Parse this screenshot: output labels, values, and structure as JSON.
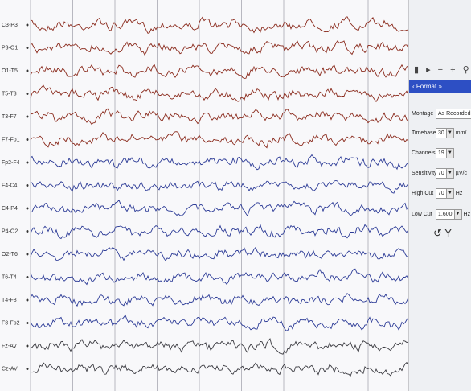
{
  "channels": [
    "C3-P3",
    "P3-O1",
    "O1-T5",
    "T5-T3",
    "T3-F7",
    "F7-Fp1",
    "Fp2-F4",
    "F4-C4",
    "C4-P4",
    "P4-O2",
    "O2-T6",
    "T6-T4",
    "T4-F8",
    "F8-Fp2",
    "Fz-AV",
    "Cz-AV"
  ],
  "panel": {
    "header": "Format",
    "settings": [
      {
        "label": "Montage",
        "value": "As Recorded"
      },
      {
        "label": "Timebase",
        "value": "30",
        "unit": "mm/"
      },
      {
        "label": "Channels",
        "value": "19"
      },
      {
        "label": "Sensitivity",
        "value": "70",
        "unit": "µV/c"
      },
      {
        "label": "High Cut",
        "value": "70",
        "unit": "Hz"
      },
      {
        "label": "Low Cut",
        "value": "1.600",
        "unit": "Hz"
      }
    ]
  }
}
